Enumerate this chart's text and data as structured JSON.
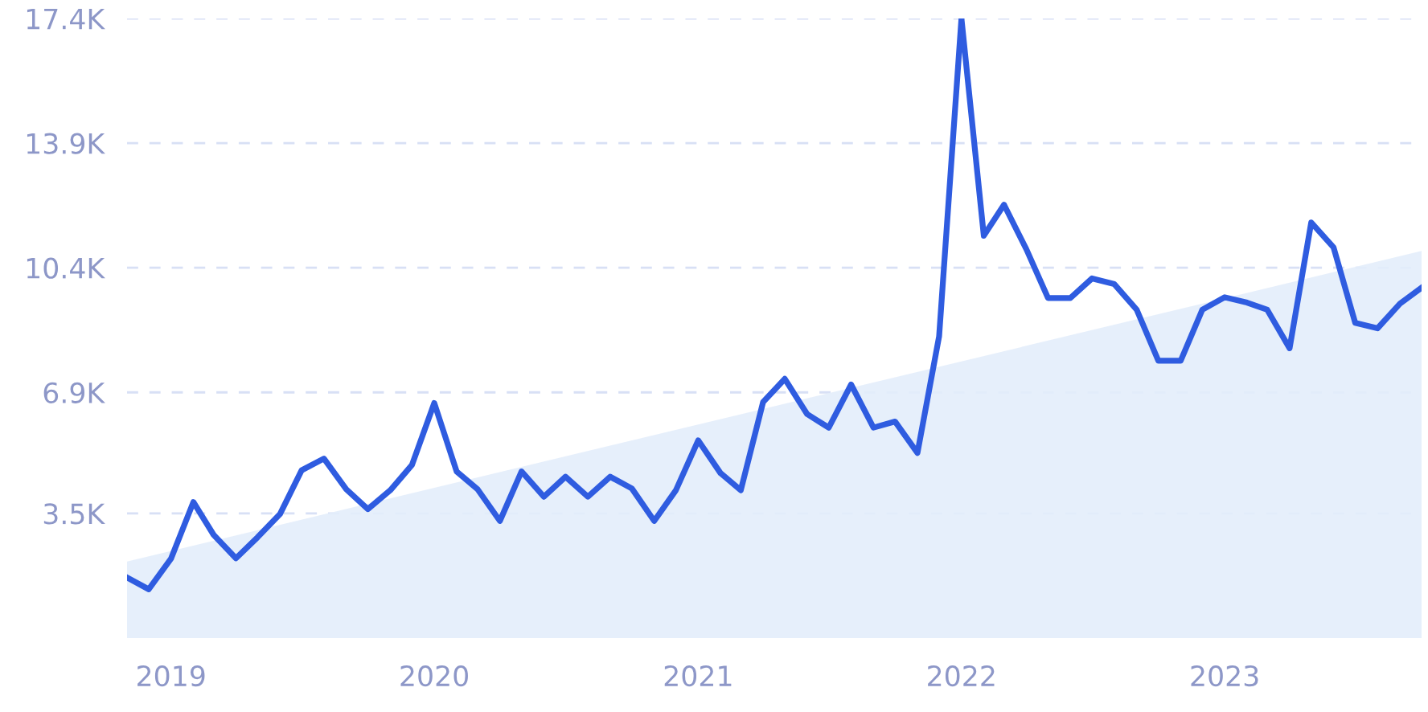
{
  "chart_data": {
    "type": "line",
    "x": [
      "2018-11",
      "2018-12",
      "2019-01",
      "2019-02",
      "2019-03",
      "2019-04",
      "2019-05",
      "2019-06",
      "2019-07",
      "2019-08",
      "2019-09",
      "2019-10",
      "2019-11",
      "2019-12",
      "2020-01",
      "2020-02",
      "2020-03",
      "2020-04",
      "2020-05",
      "2020-06",
      "2020-07",
      "2020-08",
      "2020-09",
      "2020-10",
      "2020-11",
      "2020-12",
      "2021-01",
      "2021-02",
      "2021-03",
      "2021-04",
      "2021-05",
      "2021-06",
      "2021-07",
      "2021-08",
      "2021-09",
      "2021-10",
      "2021-11",
      "2021-12",
      "2022-01",
      "2022-02",
      "2022-03",
      "2022-04",
      "2022-05",
      "2022-06",
      "2022-07",
      "2022-08",
      "2022-09",
      "2022-10",
      "2022-11",
      "2022-12",
      "2023-01",
      "2023-02",
      "2023-03",
      "2023-04",
      "2023-05",
      "2023-06",
      "2023-07",
      "2023-08",
      "2023-09",
      "2023-10"
    ],
    "series": [
      {
        "type": "area",
        "color": "#e3edfb",
        "x": [
          "2018-11",
          "2023-10"
        ],
        "values": [
          2150,
          10870
        ]
      },
      {
        "color": "#2f5ce0",
        "values": [
          1700,
          1370,
          2230,
          3820,
          2900,
          2240,
          2830,
          3480,
          4710,
          5040,
          4180,
          3620,
          4150,
          4860,
          6600,
          4680,
          4180,
          3290,
          4680,
          3970,
          4530,
          3970,
          4530,
          4200,
          3290,
          4150,
          5550,
          4630,
          4150,
          6630,
          7280,
          6290,
          5910,
          7120,
          5910,
          6080,
          5200,
          8470,
          17400,
          11300,
          12170,
          10920,
          9550,
          9550,
          10100,
          9940,
          9220,
          7790,
          7790,
          9220,
          9570,
          9420,
          9220,
          8140,
          11670,
          10970,
          8850,
          8700,
          9390,
          9840
        ]
      }
    ],
    "xlim": [
      "2018-11",
      "2023-10"
    ],
    "xticks": [
      {
        "value": "2019-01",
        "label": "2019"
      },
      {
        "value": "2020-01",
        "label": "2020"
      },
      {
        "value": "2021-01",
        "label": "2021"
      },
      {
        "value": "2022-01",
        "label": "2022"
      },
      {
        "value": "2023-01",
        "label": "2023"
      }
    ],
    "ylim": [
      0,
      17400
    ],
    "yticks": [
      {
        "value": 3500,
        "label": "3.5K"
      },
      {
        "value": 6900,
        "label": "6.9K"
      },
      {
        "value": 10400,
        "label": "10.4K"
      },
      {
        "value": 13900,
        "label": "13.9K"
      },
      {
        "value": 17400,
        "label": "17.4K"
      }
    ],
    "grid": "y"
  }
}
